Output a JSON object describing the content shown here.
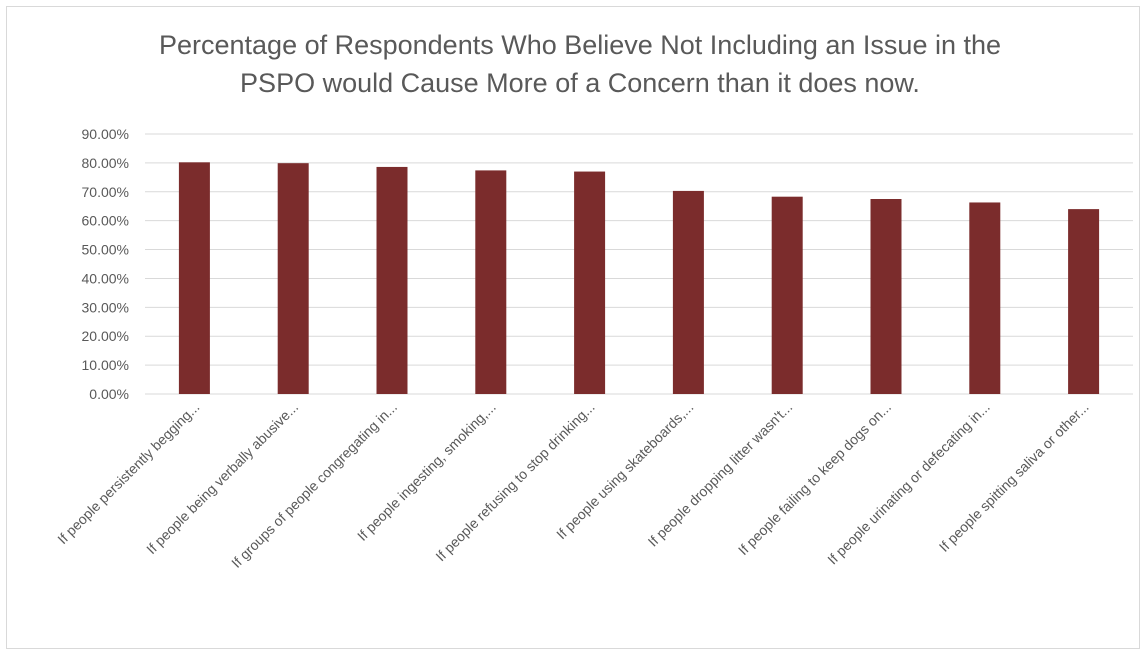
{
  "chart_data": {
    "type": "bar",
    "title": "Percentage of Respondents Who Believe Not Including an Issue in the PSPO would Cause More of a Concern than it does now.",
    "title_lines": [
      "Percentage of Respondents Who Believe Not Including an Issue in the",
      "PSPO would Cause More of a Concern than it does now."
    ],
    "categories": [
      "If people persistently begging...",
      "If people being verbally abusive...",
      "If groups of people congregating in...",
      "If people ingesting, smoking,...",
      "If people refusing to stop drinking...",
      "If people using skateboards,...",
      "If people dropping litter wasn't...",
      "If people failing to keep dogs on...",
      "If people urinating or defecating in...",
      "If people spitting saliva or other..."
    ],
    "values": [
      80.2,
      79.9,
      78.6,
      77.4,
      77.0,
      70.3,
      68.3,
      67.5,
      66.3,
      64.0
    ],
    "ylim": [
      0,
      90
    ],
    "yticks": [
      "0.00%",
      "10.00%",
      "20.00%",
      "30.00%",
      "40.00%",
      "50.00%",
      "60.00%",
      "70.00%",
      "80.00%",
      "90.00%"
    ],
    "xlabel": "",
    "ylabel": "",
    "grid": true,
    "legend": "none",
    "colors": {
      "bar": "#7b2c2c",
      "grid": "#d9d9d9",
      "text": "#595959"
    }
  }
}
